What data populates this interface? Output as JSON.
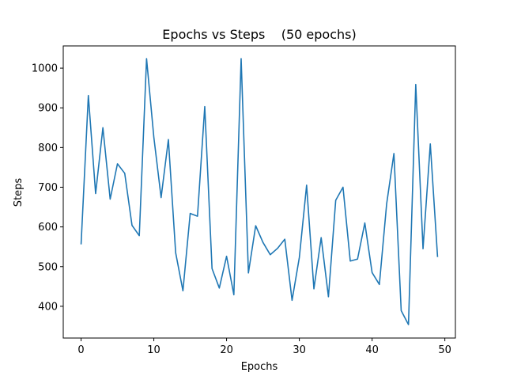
{
  "chart_data": {
    "type": "line",
    "title": "Epochs vs Steps    (50 epochs)",
    "xlabel": "Epochs",
    "ylabel": "Steps",
    "xlim": [
      -2.45,
      51.45
    ],
    "ylim": [
      320,
      1056
    ],
    "xticks": [
      0,
      10,
      20,
      30,
      40,
      50
    ],
    "yticks": [
      400,
      500,
      600,
      700,
      800,
      900,
      1000
    ],
    "grid": false,
    "series_color": "#1f77b4",
    "series": [
      {
        "x": [
          0,
          1,
          2,
          3,
          4,
          5,
          6,
          7,
          8,
          9,
          10,
          11,
          12,
          13,
          14,
          15,
          16,
          17,
          18,
          19,
          20,
          21,
          22,
          23,
          24,
          25,
          26,
          27,
          28,
          29,
          30,
          31,
          32,
          33,
          34,
          35,
          36,
          37,
          38,
          39,
          40,
          41,
          42,
          43,
          44,
          45,
          46,
          47,
          48,
          49
        ],
        "values": [
          556,
          931,
          684,
          850,
          670,
          759,
          735,
          604,
          578,
          1024,
          826,
          674,
          820,
          535,
          439,
          634,
          627,
          903,
          495,
          446,
          526,
          429,
          1024,
          484,
          603,
          561,
          530,
          546,
          569,
          415,
          523,
          705,
          444,
          573,
          424,
          667,
          700,
          514,
          519,
          610,
          485,
          455,
          658,
          785,
          389,
          354,
          959,
          545,
          809,
          524
        ]
      }
    ]
  }
}
